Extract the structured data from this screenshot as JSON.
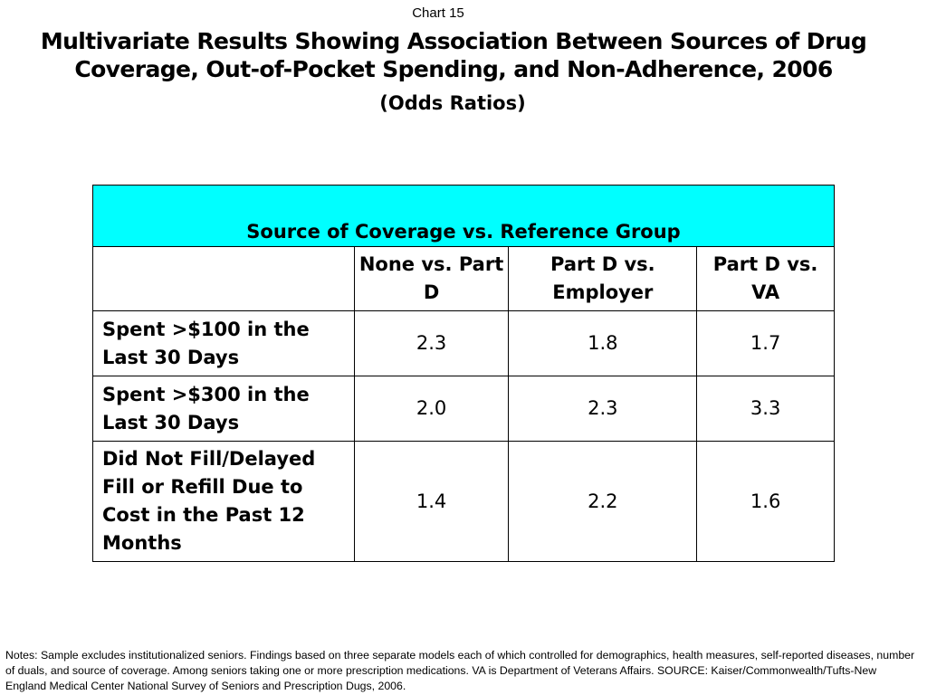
{
  "chart_number": "Chart 15",
  "title_line1": "Multivariate Results Showing Association Between Sources of Drug",
  "title_line2": "Coverage, Out-of-Pocket Spending, and Non-Adherence, 2006",
  "subtitle": "(Odds Ratios)",
  "notes": "Notes: Sample excludes institutionalized seniors. Findings based on three separate models each of which controlled for demographics, health measures, self-reported diseases, number of duals, and source of coverage. Among seniors taking one or more prescription medications. VA  is Department of Veterans Affairs. SOURCE:  Kaiser/Commonwealth/Tufts-New England Medical Center National Survey of Seniors and Prescription Dugs, 2006.",
  "colors": {
    "header_background": "#00ffff",
    "border": "#000000"
  },
  "chart_data": {
    "type": "table",
    "group_header": "Source of Coverage vs. Reference Group",
    "columns": [
      "None vs. Part D",
      "Part D vs. Employer",
      "Part D vs. VA"
    ],
    "rows": [
      {
        "label": "Spent >$100 in the Last 30 Days",
        "values": [
          "2.3",
          "1.8",
          "1.7"
        ]
      },
      {
        "label": "Spent >$300 in the Last 30 Days",
        "values": [
          "2.0",
          "2.3",
          "3.3"
        ]
      },
      {
        "label": "Did Not Fill/Delayed Fill or Refill Due to Cost in the Past 12 Months",
        "values": [
          "1.4",
          "2.2",
          "1.6"
        ]
      }
    ]
  }
}
